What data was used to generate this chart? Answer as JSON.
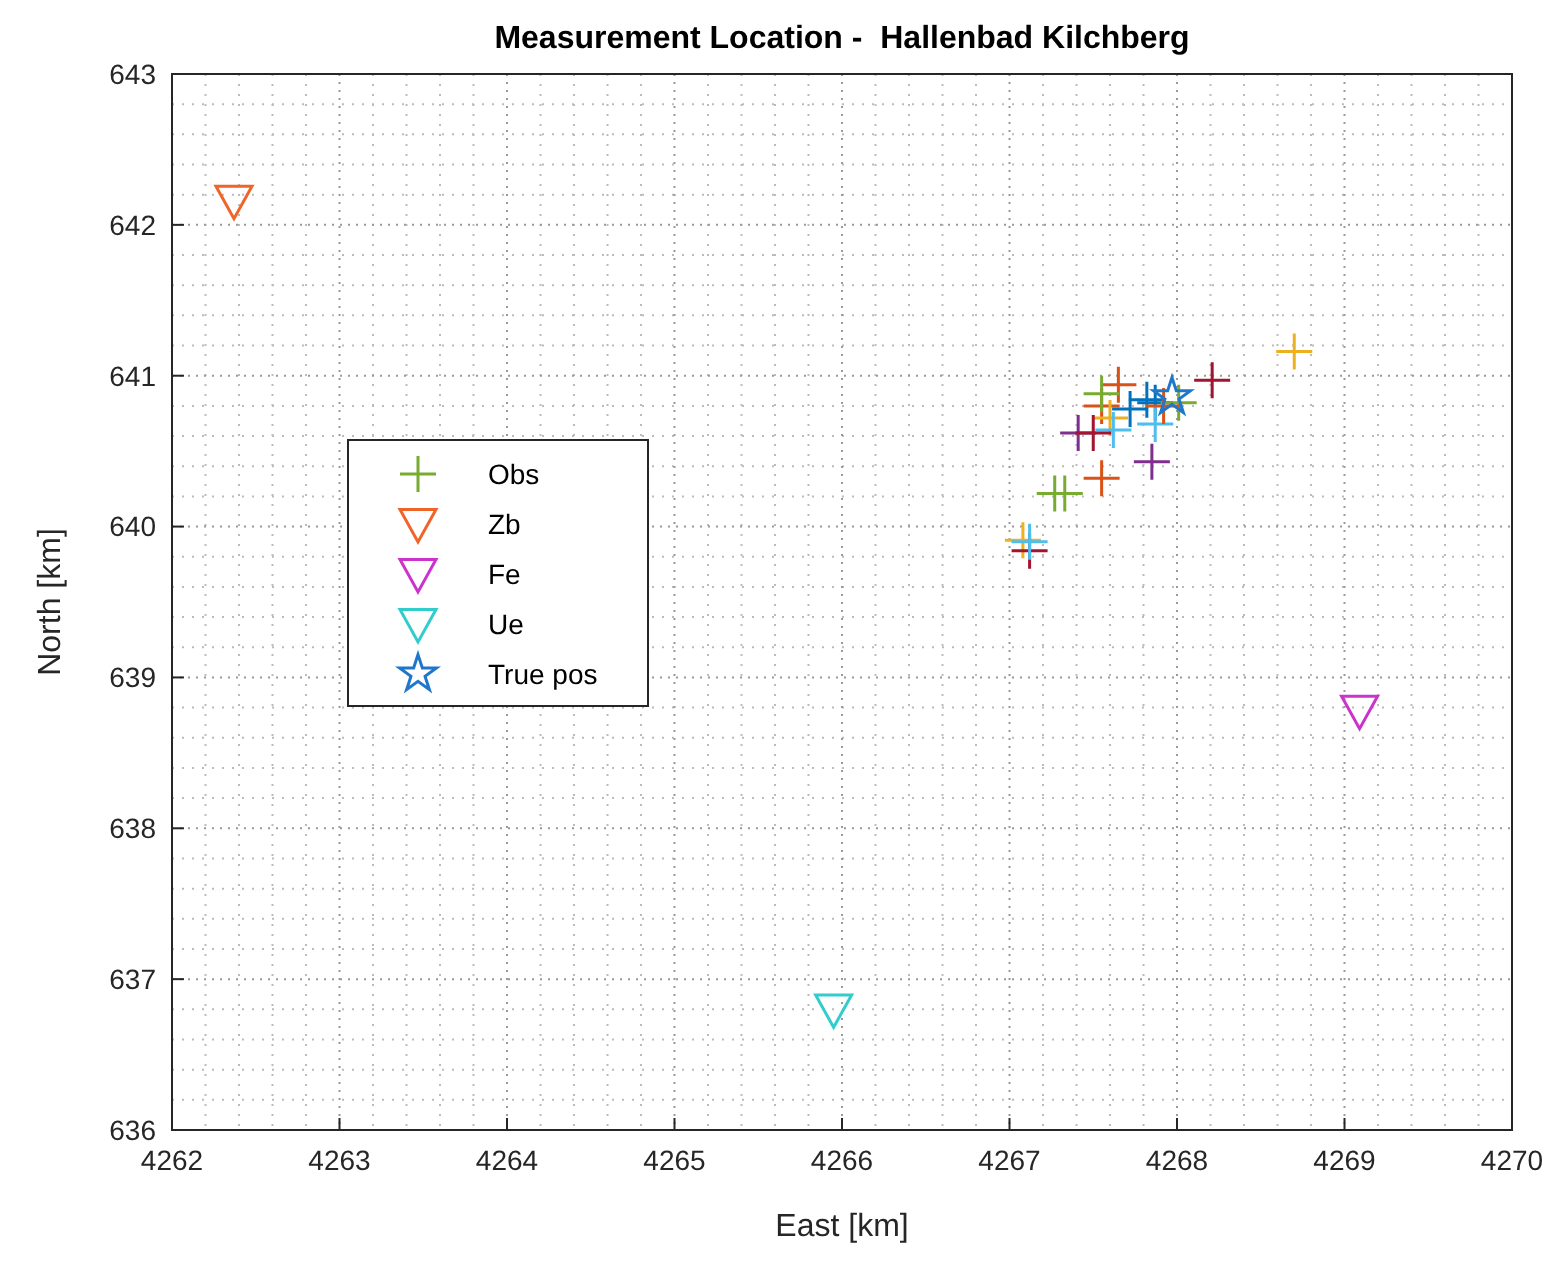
{
  "chart_data": {
    "type": "scatter",
    "title": "Measurement Location -  Hallenbad Kilchberg",
    "xlabel": "East [km]",
    "ylabel": "North [km]",
    "xlim": [
      4262,
      4270
    ],
    "ylim": [
      636,
      643
    ],
    "xticks": [
      4262,
      4263,
      4264,
      4265,
      4266,
      4267,
      4268,
      4269,
      4270
    ],
    "yticks": [
      636,
      637,
      638,
      639,
      640,
      641,
      642,
      643
    ],
    "grid": true,
    "legend": "left",
    "series": [
      {
        "name": "Obs",
        "color": "#77ac30",
        "marker": "cross",
        "x": [
          4268.7,
          4268.21,
          4267.85,
          4267.55,
          4267.27,
          4267.33,
          4267.08,
          4267.12,
          4267.12,
          4267.65,
          4267.82,
          4267.87,
          4268.01,
          4267.87,
          4267.41,
          4267.55,
          4267.55,
          4267.6,
          4267.62,
          4267.5,
          4267.72,
          4267.92
        ],
        "values": [
          641.16,
          640.97,
          640.43,
          640.32,
          640.22,
          640.22,
          639.91,
          639.84,
          639.9,
          640.94,
          640.84,
          640.82,
          640.82,
          640.68,
          640.62,
          640.8,
          640.88,
          640.72,
          640.64,
          640.62,
          640.78,
          640.8
        ],
        "colors": [
          "#edb120",
          "#a2142f",
          "#7e2f8e",
          "#d95319",
          "#77ac30",
          "#77ac30",
          "#edb120",
          "#a2142f",
          "#4dbeee",
          "#d95319",
          "#0072bd",
          "#0072bd",
          "#77ac30",
          "#4dbeee",
          "#7e2f8e",
          "#d95319",
          "#77ac30",
          "#edb120",
          "#4dbeee",
          "#a2142f",
          "#0072bd",
          "#d95319"
        ]
      },
      {
        "name": "Zb",
        "color": "#f0642a",
        "marker": "triangle",
        "x": [
          4262.37
        ],
        "values": [
          642.16
        ]
      },
      {
        "name": "Fe",
        "color": "#cc33cc",
        "marker": "triangle",
        "x": [
          4269.09
        ],
        "values": [
          638.78
        ]
      },
      {
        "name": "Ue",
        "color": "#33cccc",
        "marker": "triangle",
        "x": [
          4265.95
        ],
        "values": [
          636.8
        ]
      },
      {
        "name": "True pos",
        "color": "#1f77cc",
        "marker": "star",
        "x": [
          4267.97
        ],
        "values": [
          640.86
        ]
      }
    ]
  }
}
